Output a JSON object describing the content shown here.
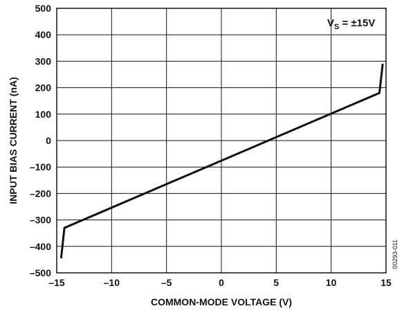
{
  "chart_data": {
    "type": "line",
    "xlabel": "COMMON-MODE VOLTAGE (V)",
    "ylabel": "INPUT BIAS CURRENT (nA)",
    "xlim": [
      -15,
      15
    ],
    "ylim": [
      -500,
      500
    ],
    "x_ticks": [
      -15,
      -10,
      -5,
      0,
      5,
      10,
      15
    ],
    "y_ticks": [
      500,
      400,
      300,
      200,
      100,
      0,
      -100,
      -200,
      -300,
      -400,
      -500
    ],
    "x_tick_labels": [
      "–15",
      "–10",
      "–5",
      "0",
      "5",
      "10",
      "15"
    ],
    "y_tick_labels": [
      "500",
      "400",
      "300",
      "200",
      "100",
      "0",
      "–100",
      "–200",
      "–300",
      "–400",
      "–500"
    ],
    "grid": true,
    "annotation": {
      "main": "V",
      "sub": "S",
      "rest": " = ±15V"
    },
    "figure_code": "00293-011",
    "series": [
      {
        "x": [
          -14.6,
          -14.3,
          14.4,
          14.7
        ],
        "y": [
          -445,
          -330,
          180,
          290
        ]
      }
    ]
  }
}
